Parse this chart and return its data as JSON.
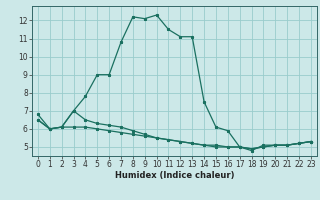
{
  "xlabel": "Humidex (Indice chaleur)",
  "ylabel": "",
  "bg_color": "#cce8e8",
  "grid_color": "#99cccc",
  "line_color": "#1a7060",
  "xlim": [
    -0.5,
    23.5
  ],
  "ylim": [
    4.5,
    12.8
  ],
  "xticks": [
    0,
    1,
    2,
    3,
    4,
    5,
    6,
    7,
    8,
    9,
    10,
    11,
    12,
    13,
    14,
    15,
    16,
    17,
    18,
    19,
    20,
    21,
    22,
    23
  ],
  "yticks": [
    5,
    6,
    7,
    8,
    9,
    10,
    11,
    12
  ],
  "line1_x": [
    0,
    1,
    2,
    3,
    4,
    5,
    6,
    7,
    8,
    9,
    10,
    11,
    12,
    13,
    14,
    15,
    16,
    17,
    18,
    19,
    20,
    21,
    22,
    23
  ],
  "line1_y": [
    6.5,
    6.0,
    6.1,
    7.0,
    7.8,
    9.0,
    9.0,
    10.8,
    12.2,
    12.1,
    12.3,
    11.5,
    11.1,
    11.1,
    7.5,
    6.1,
    5.9,
    5.0,
    4.8,
    5.1,
    5.1,
    5.1,
    5.2,
    5.3
  ],
  "line2_x": [
    0,
    1,
    2,
    3,
    4,
    5,
    6,
    7,
    8,
    9,
    10,
    11,
    12,
    13,
    14,
    15,
    16,
    17,
    18,
    19,
    20,
    21,
    22,
    23
  ],
  "line2_y": [
    6.5,
    6.0,
    6.1,
    6.1,
    6.1,
    6.0,
    5.9,
    5.8,
    5.7,
    5.6,
    5.5,
    5.4,
    5.3,
    5.2,
    5.1,
    5.1,
    5.0,
    5.0,
    4.9,
    5.0,
    5.1,
    5.1,
    5.2,
    5.3
  ],
  "line3_x": [
    0,
    1,
    2,
    3,
    4,
    5,
    6,
    7,
    8,
    9,
    10,
    11,
    12,
    13,
    14,
    15,
    16,
    17,
    18,
    19,
    20,
    21,
    22,
    23
  ],
  "line3_y": [
    6.8,
    6.0,
    6.1,
    7.0,
    6.5,
    6.3,
    6.2,
    6.1,
    5.9,
    5.7,
    5.5,
    5.4,
    5.3,
    5.2,
    5.1,
    5.0,
    5.0,
    5.0,
    4.9,
    5.0,
    5.1,
    5.1,
    5.2,
    5.3
  ],
  "tick_fontsize": 5.5,
  "xlabel_fontsize": 6.0,
  "marker_size": 2.0,
  "linewidth": 0.9
}
